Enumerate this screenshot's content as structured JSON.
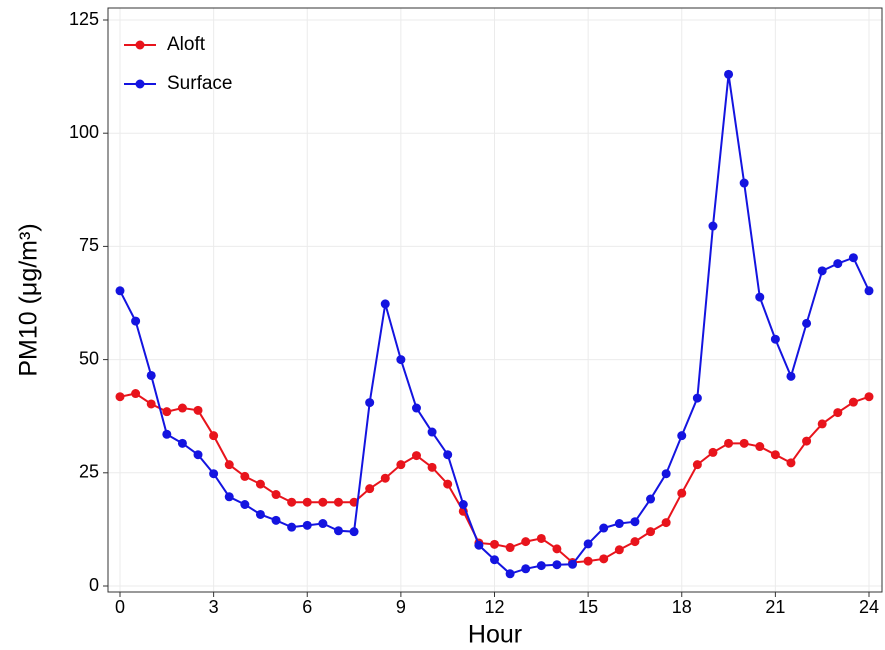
{
  "chart_data": {
    "type": "line",
    "x_label": "Hour",
    "y_label": "PM10 (μg/m³)",
    "x": [
      0,
      0.5,
      1,
      1.5,
      2,
      2.5,
      3,
      3.5,
      4,
      4.5,
      5,
      5.5,
      6,
      6.5,
      7,
      7.5,
      8,
      8.5,
      9,
      9.5,
      10,
      10.5,
      11,
      11.5,
      12,
      12.5,
      13,
      13.5,
      14,
      14.5,
      15,
      15.5,
      16,
      16.5,
      17,
      17.5,
      18,
      18.5,
      19,
      19.5,
      20,
      20.5,
      21,
      21.5,
      22,
      22.5,
      23,
      23.5,
      24
    ],
    "series": [
      {
        "name": "Aloft",
        "color": "#e8141c",
        "values": [
          41.8,
          42.5,
          40.2,
          38.5,
          39.3,
          38.8,
          33.2,
          26.8,
          24.2,
          22.5,
          20.2,
          18.5,
          18.5,
          18.5,
          18.5,
          18.5,
          21.5,
          23.8,
          26.8,
          28.8,
          26.2,
          22.5,
          16.5,
          9.5,
          9.2,
          8.5,
          9.8,
          10.5,
          8.2,
          5.2,
          5.5,
          6.0,
          8.0,
          9.8,
          12.0,
          14.0,
          20.5,
          26.8,
          29.5,
          31.5,
          31.5,
          30.8,
          29.0,
          27.2,
          32.0,
          35.8,
          38.3,
          40.6,
          41.8
        ]
      },
      {
        "name": "Surface",
        "color": "#1414e0",
        "values": [
          65.2,
          58.5,
          46.5,
          33.5,
          31.5,
          29.0,
          24.8,
          19.7,
          18.0,
          15.8,
          14.5,
          13.0,
          13.4,
          13.8,
          12.2,
          12.0,
          40.5,
          62.3,
          50.0,
          39.3,
          34.0,
          29.0,
          18.0,
          9.0,
          5.8,
          2.7,
          3.8,
          4.5,
          4.7,
          4.8,
          9.3,
          12.8,
          13.8,
          14.2,
          19.2,
          24.8,
          33.2,
          41.5,
          79.5,
          113.0,
          89.0,
          63.8,
          54.5,
          46.3,
          58.0,
          69.6,
          71.2,
          72.5,
          65.2
        ]
      }
    ],
    "xlim": [
      0,
      24
    ],
    "xticks": [
      0,
      3,
      6,
      9,
      12,
      15,
      18,
      21,
      24
    ],
    "ylim": [
      0,
      125
    ],
    "yticks": [
      0,
      25,
      50,
      75,
      100,
      125
    ],
    "grid": true,
    "legend": "top-left"
  }
}
